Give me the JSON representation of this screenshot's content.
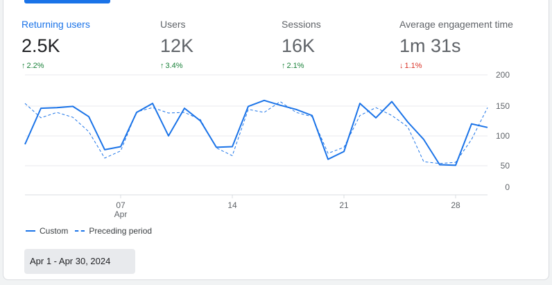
{
  "metrics": [
    {
      "label": "Returning users",
      "value": "2.5K",
      "change": "2.2%",
      "direction": "up"
    },
    {
      "label": "Users",
      "value": "12K",
      "change": "3.4%",
      "direction": "up"
    },
    {
      "label": "Sessions",
      "value": "16K",
      "change": "2.1%",
      "direction": "up"
    },
    {
      "label": "Average engagement time",
      "value": "1m 31s",
      "change": "1.1%",
      "direction": "down"
    }
  ],
  "colors": {
    "accent": "#1a73e8",
    "up": "#188038",
    "down": "#d93025"
  },
  "legend": {
    "custom": "Custom",
    "preceding": "Preceding period"
  },
  "date_range": "Apr 1 - Apr 30, 2024",
  "chart_data": {
    "type": "line",
    "x": [
      1,
      2,
      3,
      4,
      5,
      6,
      7,
      8,
      9,
      10,
      11,
      12,
      13,
      14,
      15,
      16,
      17,
      18,
      19,
      20,
      21,
      22,
      23,
      24,
      25,
      26,
      27,
      28,
      29,
      30
    ],
    "x_ticks": [
      {
        "day": 7,
        "label": "07",
        "sub": "Apr"
      },
      {
        "day": 14,
        "label": "14"
      },
      {
        "day": 21,
        "label": "21"
      },
      {
        "day": 28,
        "label": "28"
      }
    ],
    "y_ticks": [
      0,
      50,
      100,
      150,
      200
    ],
    "ylim": [
      0,
      200
    ],
    "grid": true,
    "series": [
      {
        "name": "Custom",
        "style": "solid",
        "values": [
          87,
          147,
          148,
          150,
          133,
          78,
          83,
          140,
          155,
          101,
          147,
          126,
          82,
          83,
          150,
          160,
          152,
          145,
          135,
          62,
          75,
          155,
          131,
          158,
          124,
          95,
          53,
          52,
          121,
          115
        ]
      },
      {
        "name": "Preceding period",
        "style": "dashed",
        "values": [
          155,
          131,
          140,
          132,
          108,
          64,
          76,
          141,
          148,
          139,
          140,
          128,
          81,
          68,
          145,
          140,
          158,
          140,
          133,
          72,
          82,
          135,
          148,
          135,
          116,
          58,
          55,
          57,
          95,
          148
        ]
      }
    ]
  }
}
